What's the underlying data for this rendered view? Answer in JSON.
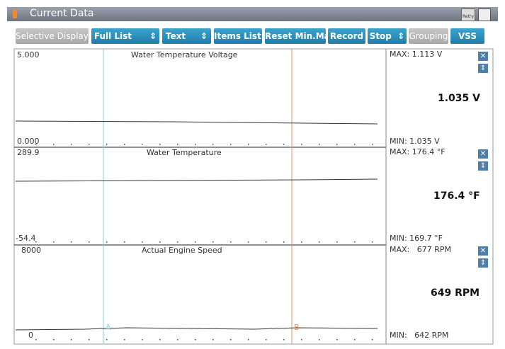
{
  "header": {
    "title": "Current Data",
    "retry_icon": "Retry"
  },
  "toolbar": {
    "buttons": [
      "Selective Display",
      "Full List",
      "Text",
      "Items List",
      "Reset Min.Max",
      "Record",
      "Stop",
      "Grouping",
      "VSS"
    ]
  },
  "panels": [
    {
      "name": "Water Temperature Voltage",
      "axis_max": "5.000",
      "axis_min": "0.000",
      "max": "MAX: 1.113 V",
      "current": "1.035 V",
      "min": "MIN: 1.035 V"
    },
    {
      "name": "Water Temperature",
      "axis_max": "289.9",
      "axis_min": "-54.4",
      "max": "MAX: 176.4 °F",
      "current": "176.4 °F",
      "min": "MIN: 169.7 °F"
    },
    {
      "name": "Actual Engine Speed",
      "axis_max": "8000",
      "axis_min": "0",
      "max": "MAX:   677 RPM",
      "current": "649 RPM",
      "min": "MIN:   642 RPM"
    }
  ],
  "cursors": [
    "A",
    "B"
  ]
}
